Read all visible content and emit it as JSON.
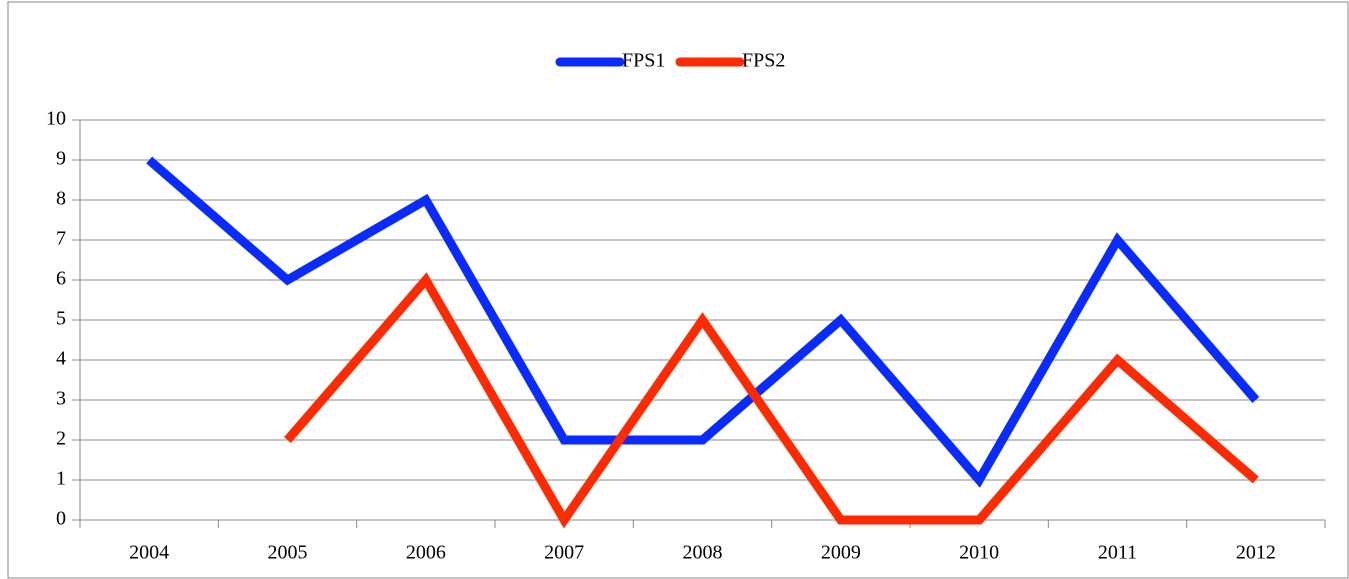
{
  "chart_data": {
    "type": "line",
    "categories": [
      "2004",
      "2005",
      "2006",
      "2007",
      "2008",
      "2009",
      "2010",
      "2011",
      "2012"
    ],
    "series": [
      {
        "name": "FPS1",
        "color": "#0a2bff",
        "values": [
          9,
          6,
          8,
          2,
          2,
          5,
          1,
          7,
          3
        ]
      },
      {
        "name": "FPS2",
        "color": "#ff2a00",
        "values": [
          null,
          2,
          6,
          0,
          5,
          0,
          0,
          4,
          1
        ]
      }
    ],
    "ylim": [
      0,
      10
    ],
    "yticks": [
      0,
      1,
      2,
      3,
      4,
      5,
      6,
      7,
      8,
      9,
      10
    ],
    "grid": true,
    "legend": "top"
  }
}
